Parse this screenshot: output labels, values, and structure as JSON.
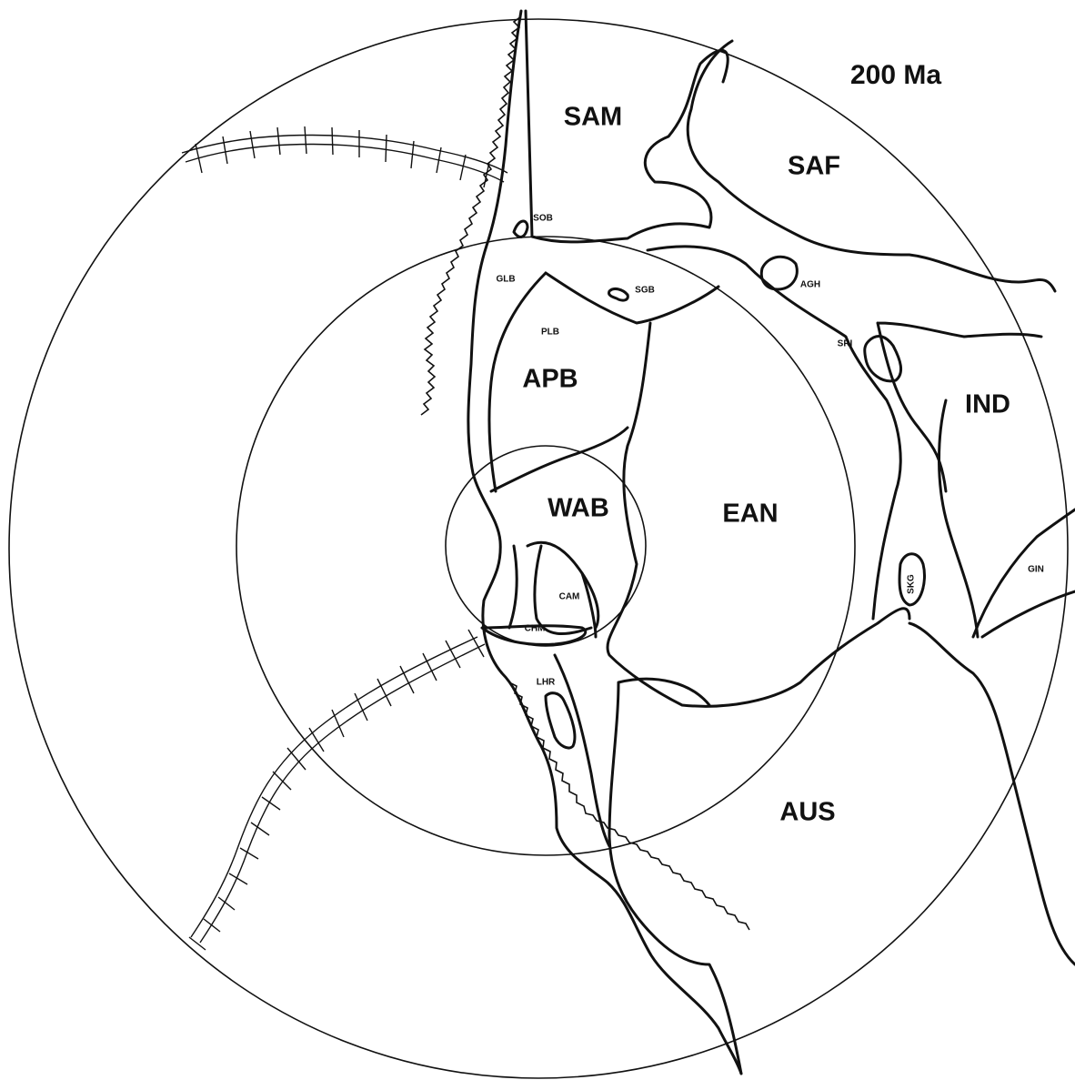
{
  "age_label": "200 Ma",
  "labels": {
    "SAM": "SAM",
    "SAF": "SAF",
    "IND": "IND",
    "APB": "APB",
    "WAB": "WAB",
    "EAN": "EAN",
    "AUS": "AUS",
    "SOB": "SOB",
    "GLB": "GLB",
    "SGB": "SGB",
    "AGH": "AGH",
    "PLB": "PLB",
    "SRI": "SRI",
    "CAM": "CAM",
    "CHM": "CHM",
    "LHR": "LHR",
    "SKG": "SKG",
    "GIN": "GIN"
  }
}
